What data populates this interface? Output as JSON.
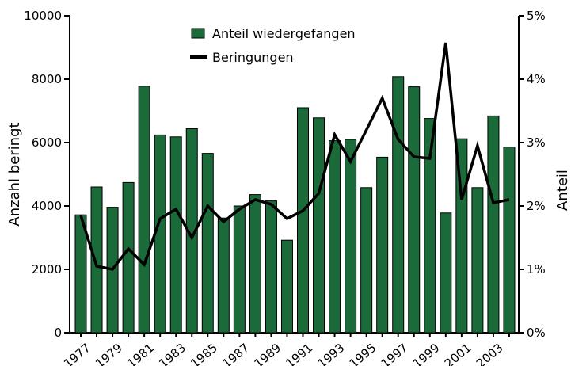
{
  "chart_data": {
    "type": "bar_line",
    "categories": [
      "1977",
      null,
      "1979",
      null,
      "1981",
      null,
      "1983",
      null,
      "1985",
      null,
      "1987",
      null,
      "1989",
      null,
      "1991",
      null,
      "1993",
      null,
      "1995",
      null,
      "1997",
      null,
      "1999",
      null,
      "2001",
      null,
      "2003",
      null
    ],
    "series": [
      {
        "name": "Anteil wiedergefangen",
        "type": "bar",
        "axis": "y2",
        "color": "#1b6b3a",
        "values": [
          1.86,
          2.3,
          1.98,
          2.37,
          3.89,
          3.12,
          3.09,
          3.22,
          2.83,
          1.81,
          2.0,
          2.18,
          2.08,
          1.46,
          3.55,
          3.39,
          3.03,
          3.05,
          2.29,
          2.77,
          4.04,
          3.88,
          3.38,
          1.89,
          3.06,
          2.29,
          3.42,
          2.93
        ]
      },
      {
        "name": "Beringungen",
        "type": "line",
        "color": "#000000",
        "values": [
          3700,
          2100,
          2000,
          2650,
          2150,
          3600,
          3900,
          3000,
          4000,
          3500,
          3900,
          4200,
          4050,
          3600,
          3850,
          4400,
          6250,
          5400,
          6400,
          7400,
          6100,
          5550,
          5500,
          9150,
          4200,
          5900,
          4100,
          4200
        ]
      }
    ],
    "ylabel": "Anzahl beringt",
    "y2label": "Anteil",
    "ylim": [
      0,
      10000
    ],
    "yticks": [
      0,
      2000,
      4000,
      6000,
      8000,
      10000
    ],
    "y2lim": [
      0,
      5
    ],
    "y2ticks": [
      {
        "value": 0,
        "label": "0%"
      },
      {
        "value": 1,
        "label": "1%"
      },
      {
        "value": 2,
        "label": "2%"
      },
      {
        "value": 3,
        "label": "3%"
      },
      {
        "value": 4,
        "label": "4%"
      },
      {
        "value": 5,
        "label": "5%"
      }
    ]
  }
}
